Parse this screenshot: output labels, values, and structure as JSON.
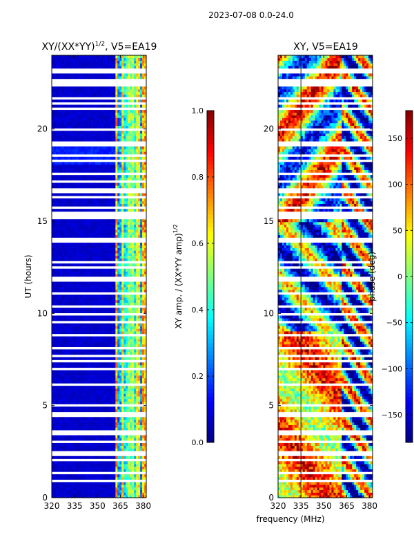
{
  "figure": {
    "suptitle": "2023-07-08 0.0-24.0"
  },
  "colors": {
    "cmap": "jet",
    "gap": "#ffffff",
    "spine": "#000000"
  },
  "chart_data": [
    {
      "type": "heatmap",
      "title_main": "XY/(XX*YY)",
      "title_exp": "1/2",
      "title_suffix": ", V5=EA19",
      "xlabel": "",
      "ylabel": "UT (hours)",
      "xlim": [
        320,
        382
      ],
      "ylim": [
        0,
        24
      ],
      "xticks": [
        "320",
        "335",
        "350",
        "365",
        "380"
      ],
      "xtick_values": [
        320,
        335,
        350,
        365,
        380
      ],
      "yticks": [
        "0",
        "5",
        "10",
        "15",
        "20"
      ],
      "ytick_values": [
        0,
        5,
        10,
        15,
        20
      ],
      "colorbar": {
        "label_main": "XY amp. / (XX*YY amp)",
        "label_exp": "1/2",
        "range": [
          0.0,
          1.0
        ],
        "ticks": [
          "0.0",
          "0.2",
          "0.4",
          "0.6",
          "0.8",
          "1.0"
        ],
        "tick_values": [
          0.0,
          0.2,
          0.4,
          0.6,
          0.8,
          1.0
        ]
      }
    },
    {
      "type": "heatmap",
      "title_main": "XY, V5=EA19",
      "xlabel": "frequency (MHz)",
      "ylabel": "",
      "xlim": [
        320,
        382
      ],
      "ylim": [
        0,
        24
      ],
      "xticks": [
        "320",
        "335",
        "350",
        "365",
        "380"
      ],
      "xtick_values": [
        320,
        335,
        350,
        365,
        380
      ],
      "yticks": [
        "0",
        "5",
        "10",
        "15",
        "20"
      ],
      "ytick_values": [
        0,
        5,
        10,
        15,
        20
      ],
      "colorbar": {
        "label_main": "phase (deg)",
        "range": [
          -180,
          180
        ],
        "ticks": [
          "−150",
          "−100",
          "−50",
          "0",
          "50",
          "100",
          "150"
        ],
        "tick_values": [
          -150,
          -100,
          -50,
          0,
          50,
          100,
          150
        ]
      }
    }
  ]
}
